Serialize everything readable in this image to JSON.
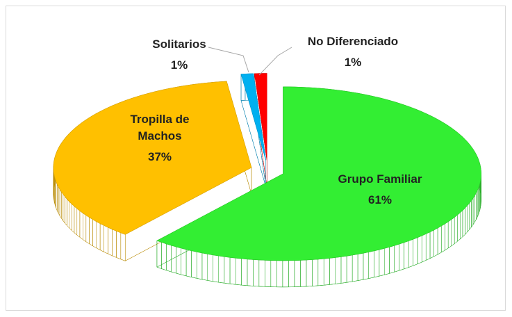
{
  "chart_data": {
    "type": "pie3d",
    "categories": [
      "Grupo Familiar",
      "Tropilla de Machos",
      "Solitarios",
      "No Diferenciado"
    ],
    "values": [
      61,
      37,
      1,
      1
    ],
    "value_labels": [
      "61%",
      "37%",
      "1%",
      "1%"
    ],
    "colors": [
      "#33ee33",
      "#ffc000",
      "#00b0f0",
      "#ff0000"
    ]
  }
}
